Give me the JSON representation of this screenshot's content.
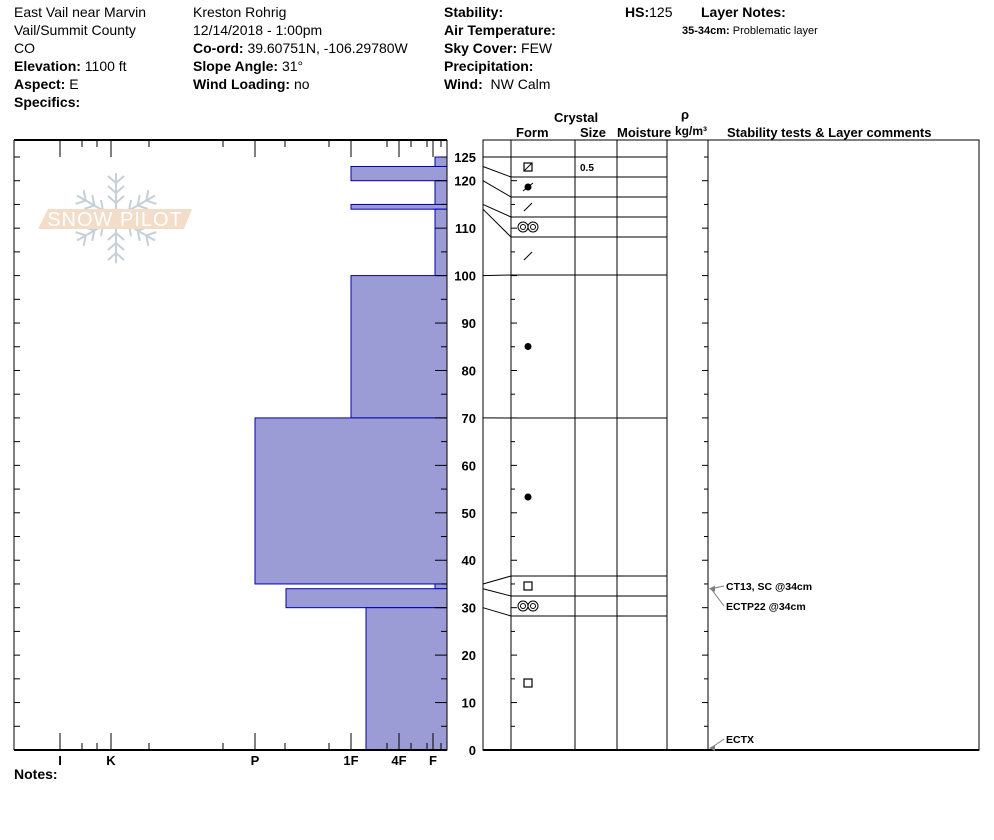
{
  "header": {
    "location": "East Vail near Marvin",
    "region": "Vail/Summit County",
    "state": "CO",
    "elevation_label": "Elevation:",
    "elevation": "1100 ft",
    "aspect_label": "Aspect:",
    "aspect": "E",
    "specifics_label": "Specifics:",
    "observer": "Kreston Rohrig",
    "datetime": "12/14/2018 - 1:00pm",
    "coord_label": "Co-ord:",
    "coord": "39.60751N, -106.29780W",
    "slope_label": "Slope Angle:",
    "slope": "31°",
    "wind_loading_label": "Wind Loading:",
    "wind_loading": "no",
    "stability_label": "Stability:",
    "air_temp_label": "Air Temperature:",
    "sky_label": "Sky Cover:",
    "sky": "FEW",
    "precip_label": "Precipitation:",
    "wind_label": "Wind:",
    "wind": "NW Calm",
    "hs_label": "HS:",
    "hs": "125",
    "layer_notes_label": "Layer Notes:",
    "layer_note_range": "35-34cm:",
    "layer_note_text": "Problematic layer"
  },
  "columns": {
    "crystal": "Crystal",
    "form": "Form",
    "size": "Size",
    "moisture": "Moisture",
    "rho": "ρ",
    "density_unit": "kg/m³",
    "stability": "Stability tests & Layer comments"
  },
  "notes_label": "Notes:",
  "logo_text": "SNOW PILOT",
  "colors": {
    "hardness_fill": "#9b9bd6",
    "hardness_stroke": "#0000b0",
    "arrow": "#808080",
    "logo_banner": "#f3dcc8",
    "logo_flake": "#c5d0d8"
  },
  "chart_data": {
    "type": "snow-profile",
    "depth_axis": {
      "unit": "cm",
      "range": [
        0,
        125
      ],
      "tick_labels": [
        "0",
        "10",
        "20",
        "30",
        "40",
        "50",
        "60",
        "70",
        "80",
        "90",
        "100",
        "110",
        "120",
        "125"
      ]
    },
    "hardness_axis": {
      "tick_labels": [
        "I",
        "K",
        "P",
        "1F",
        "4F",
        "F"
      ]
    },
    "hardness_layers": [
      {
        "top": 125,
        "bottom": 123,
        "hardness": "F"
      },
      {
        "top": 123,
        "bottom": 120,
        "hardness": "1F"
      },
      {
        "top": 120,
        "bottom": 115,
        "hardness": "F"
      },
      {
        "top": 115,
        "bottom": 114,
        "hardness": "1F"
      },
      {
        "top": 114,
        "bottom": 100,
        "hardness": "F"
      },
      {
        "top": 100,
        "bottom": 70,
        "hardness": "1F"
      },
      {
        "top": 70,
        "bottom": 35,
        "hardness": "P"
      },
      {
        "top": 35,
        "bottom": 34,
        "hardness": "F"
      },
      {
        "top": 34,
        "bottom": 30,
        "hardness": "P-"
      },
      {
        "top": 30,
        "bottom": 0,
        "hardness": "1F-"
      }
    ],
    "crystal_layers": [
      {
        "top": 125,
        "bottom": 123,
        "form": "square-diagonal-icon",
        "size": "0.5"
      },
      {
        "top": 123,
        "bottom": 120,
        "form": "melt-freeze-crust-icon",
        "size": ""
      },
      {
        "top": 120,
        "bottom": 115,
        "form": "decomposing-icon",
        "size": ""
      },
      {
        "top": 115,
        "bottom": 114,
        "form": "melt-forms-icon",
        "size": ""
      },
      {
        "top": 114,
        "bottom": 100,
        "form": "decomposing-icon",
        "size": ""
      },
      {
        "top": 100,
        "bottom": 70,
        "form": "rounded-grains-icon",
        "size": ""
      },
      {
        "top": 70,
        "bottom": 35,
        "form": "rounded-grains-icon",
        "size": ""
      },
      {
        "top": 35,
        "bottom": 34,
        "form": "faceted-icon",
        "size": ""
      },
      {
        "top": 34,
        "bottom": 30,
        "form": "melt-forms-icon",
        "size": ""
      },
      {
        "top": 30,
        "bottom": 0,
        "form": "faceted-icon",
        "size": ""
      }
    ],
    "stability_tests": [
      {
        "label": "CT13, SC @34cm",
        "depth": 34
      },
      {
        "label": "ECTP22 @34cm",
        "depth": 34
      },
      {
        "label": "ECTX",
        "depth": 0
      }
    ]
  }
}
